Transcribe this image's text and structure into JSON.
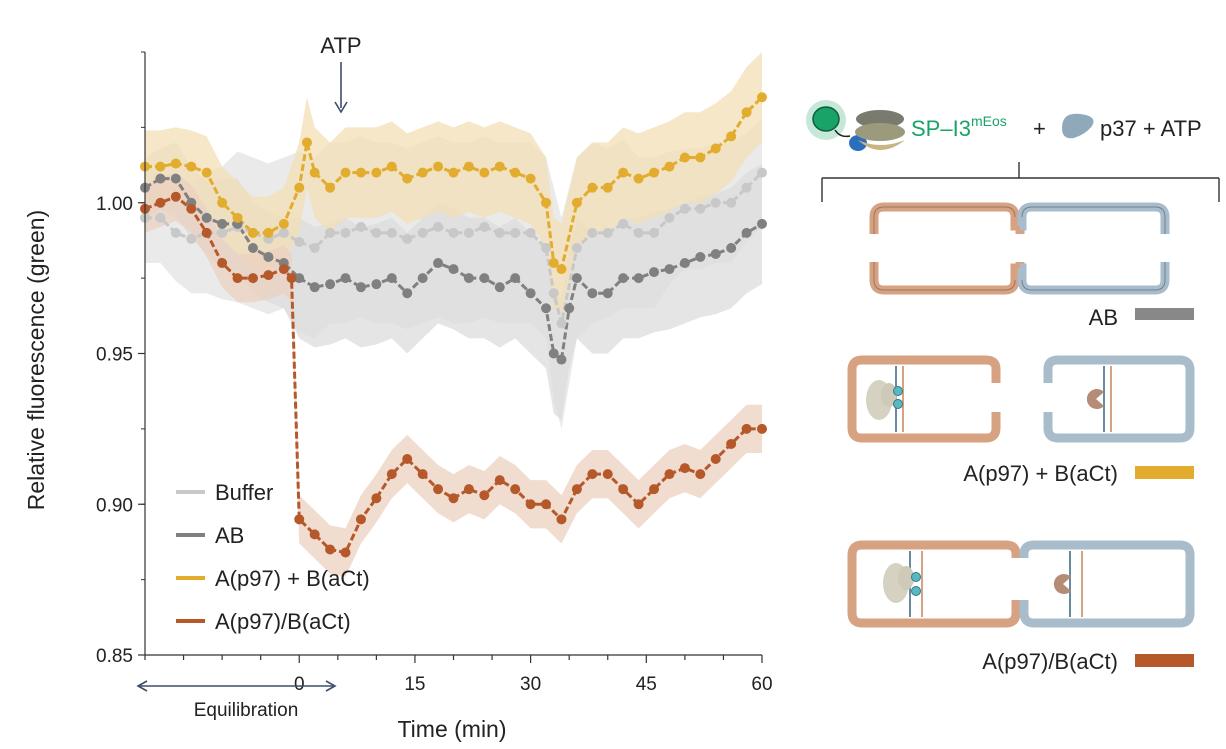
{
  "chart_data": {
    "type": "line",
    "ylabel": "Relative fluorescence (green)",
    "xlabel": "Time (min)",
    "xlim": [
      -20,
      60
    ],
    "ylim": [
      0.85,
      1.05
    ],
    "x_ticks": [
      0,
      15,
      30,
      45,
      60
    ],
    "x_tick_labels": [
      "0",
      "15",
      "30",
      "45",
      "60"
    ],
    "y_ticks": [
      0.85,
      0.9,
      0.95,
      1.0
    ],
    "y_tick_labels": [
      "0.85",
      "0.90",
      "0.95",
      "1.00"
    ],
    "annotation": "ATP",
    "annotation_x": -0.7,
    "equilibration_label": "Equilibration",
    "legend_position": "bottom-left",
    "series": [
      {
        "name": "Buffer",
        "color": "#c8c8c8",
        "band": "#e3e3e3",
        "x": [
          -20,
          -18,
          -16,
          -14,
          -12,
          -10,
          -8,
          -6,
          -4,
          -2,
          0,
          2,
          4,
          6,
          8,
          10,
          12,
          14,
          16,
          18,
          20,
          22,
          24,
          26,
          28,
          30,
          32,
          33,
          34,
          36,
          38,
          40,
          42,
          44,
          46,
          48,
          50,
          52,
          54,
          56,
          58,
          60
        ],
        "y": [
          0.995,
          0.995,
          0.99,
          0.988,
          0.99,
          0.99,
          0.992,
          0.99,
          0.988,
          0.99,
          0.987,
          0.985,
          0.99,
          0.99,
          0.992,
          0.99,
          0.99,
          0.988,
          0.99,
          0.992,
          0.99,
          0.99,
          0.992,
          0.99,
          0.99,
          0.99,
          0.985,
          0.97,
          0.96,
          0.985,
          0.99,
          0.99,
          0.993,
          0.99,
          0.99,
          0.995,
          0.998,
          0.998,
          1.0,
          1.0,
          1.005,
          1.01
        ],
        "err": [
          0.015,
          0.015,
          0.016,
          0.018,
          0.02,
          0.022,
          0.025,
          0.025,
          0.025,
          0.025,
          0.03,
          0.03,
          0.03,
          0.03,
          0.03,
          0.03,
          0.03,
          0.03,
          0.03,
          0.03,
          0.03,
          0.03,
          0.03,
          0.03,
          0.03,
          0.03,
          0.03,
          0.035,
          0.035,
          0.03,
          0.03,
          0.028,
          0.028,
          0.025,
          0.025,
          0.022,
          0.02,
          0.02,
          0.02,
          0.02,
          0.018,
          0.018
        ]
      },
      {
        "name": "AB",
        "color": "#808080",
        "band": "#dcdcdc",
        "x": [
          -20,
          -18,
          -16,
          -14,
          -12,
          -10,
          -8,
          -6,
          -4,
          -2,
          0,
          2,
          4,
          6,
          8,
          10,
          12,
          14,
          16,
          18,
          20,
          22,
          24,
          26,
          28,
          30,
          32,
          33,
          34,
          35,
          36,
          38,
          40,
          42,
          44,
          46,
          48,
          50,
          52,
          54,
          56,
          58,
          60
        ],
        "y": [
          1.005,
          1.008,
          1.008,
          1.0,
          0.995,
          0.993,
          0.993,
          0.985,
          0.982,
          0.98,
          0.975,
          0.972,
          0.973,
          0.975,
          0.972,
          0.973,
          0.975,
          0.97,
          0.975,
          0.98,
          0.978,
          0.975,
          0.975,
          0.972,
          0.975,
          0.97,
          0.965,
          0.95,
          0.948,
          0.965,
          0.975,
          0.97,
          0.97,
          0.975,
          0.975,
          0.977,
          0.978,
          0.98,
          0.982,
          0.983,
          0.985,
          0.99,
          0.993
        ],
        "err": [
          0.01,
          0.01,
          0.012,
          0.012,
          0.012,
          0.015,
          0.015,
          0.015,
          0.015,
          0.015,
          0.02,
          0.02,
          0.02,
          0.02,
          0.02,
          0.02,
          0.02,
          0.02,
          0.02,
          0.02,
          0.02,
          0.02,
          0.02,
          0.02,
          0.02,
          0.02,
          0.02,
          0.02,
          0.02,
          0.02,
          0.02,
          0.02,
          0.02,
          0.02,
          0.02,
          0.02,
          0.02,
          0.02,
          0.02,
          0.02,
          0.02,
          0.02,
          0.02
        ]
      },
      {
        "name": "A(p97) + B(aCt)",
        "color": "#e2ac2e",
        "band": "#f2dfb4",
        "x": [
          -20,
          -18,
          -16,
          -14,
          -12,
          -10,
          -8,
          -6,
          -4,
          -2,
          0,
          1,
          2,
          4,
          6,
          8,
          10,
          12,
          14,
          16,
          18,
          20,
          22,
          24,
          26,
          28,
          30,
          32,
          33,
          34,
          36,
          38,
          40,
          42,
          44,
          46,
          48,
          50,
          52,
          54,
          56,
          58,
          60
        ],
        "y": [
          1.012,
          1.012,
          1.013,
          1.012,
          1.01,
          1.0,
          0.995,
          0.99,
          0.99,
          0.993,
          1.005,
          1.02,
          1.01,
          1.005,
          1.01,
          1.01,
          1.01,
          1.012,
          1.008,
          1.01,
          1.012,
          1.01,
          1.012,
          1.01,
          1.012,
          1.01,
          1.008,
          1.0,
          0.98,
          0.978,
          1.0,
          1.005,
          1.005,
          1.01,
          1.008,
          1.01,
          1.012,
          1.015,
          1.015,
          1.018,
          1.022,
          1.03,
          1.035
        ],
        "err": [
          0.012,
          0.012,
          0.012,
          0.012,
          0.012,
          0.012,
          0.012,
          0.012,
          0.012,
          0.012,
          0.015,
          0.015,
          0.015,
          0.015,
          0.015,
          0.015,
          0.015,
          0.015,
          0.015,
          0.015,
          0.015,
          0.015,
          0.015,
          0.015,
          0.015,
          0.015,
          0.015,
          0.015,
          0.015,
          0.015,
          0.015,
          0.015,
          0.015,
          0.015,
          0.015,
          0.015,
          0.015,
          0.015,
          0.015,
          0.015,
          0.015,
          0.015,
          0.015
        ]
      },
      {
        "name": "A(p97)/B(aCt)",
        "color": "#b5582a",
        "band": "#ecd0c0",
        "x": [
          -20,
          -18,
          -16,
          -14,
          -12,
          -10,
          -8,
          -6,
          -4,
          -2,
          -1,
          0,
          2,
          4,
          6,
          8,
          10,
          12,
          14,
          16,
          18,
          20,
          22,
          24,
          26,
          28,
          30,
          32,
          34,
          36,
          38,
          40,
          42,
          44,
          46,
          48,
          50,
          52,
          54,
          56,
          58,
          60
        ],
        "y": [
          0.998,
          1.0,
          1.002,
          0.998,
          0.99,
          0.98,
          0.975,
          0.975,
          0.976,
          0.978,
          0.975,
          0.895,
          0.89,
          0.885,
          0.884,
          0.895,
          0.902,
          0.91,
          0.915,
          0.91,
          0.905,
          0.902,
          0.905,
          0.903,
          0.908,
          0.905,
          0.9,
          0.9,
          0.895,
          0.905,
          0.91,
          0.91,
          0.905,
          0.9,
          0.905,
          0.91,
          0.912,
          0.91,
          0.915,
          0.92,
          0.925,
          0.925
        ],
        "err": [
          0.008,
          0.008,
          0.008,
          0.008,
          0.008,
          0.008,
          0.008,
          0.008,
          0.008,
          0.008,
          0.008,
          0.008,
          0.008,
          0.008,
          0.008,
          0.008,
          0.008,
          0.008,
          0.008,
          0.008,
          0.008,
          0.008,
          0.008,
          0.008,
          0.008,
          0.008,
          0.008,
          0.008,
          0.008,
          0.008,
          0.008,
          0.008,
          0.008,
          0.008,
          0.008,
          0.008,
          0.008,
          0.008,
          0.008,
          0.008,
          0.008,
          0.008
        ]
      }
    ]
  },
  "schematic": {
    "header_probe_label": "SP–I3",
    "header_probe_superscript": "mEos",
    "header_plus_1": "+",
    "header_rest": "p37 + ATP",
    "conditions": [
      {
        "label": "AB",
        "color": "#888888"
      },
      {
        "label": "A(p97) + B(aCt)",
        "color": "#e2ac2e"
      },
      {
        "label": "A(p97)/B(aCt)",
        "color": "#b5582a"
      }
    ],
    "colors": {
      "vesicle_a": "#d7a282",
      "vesicle_b": "#a8bccb",
      "green": "#1aa368",
      "teal": "#5ab8c2"
    }
  }
}
